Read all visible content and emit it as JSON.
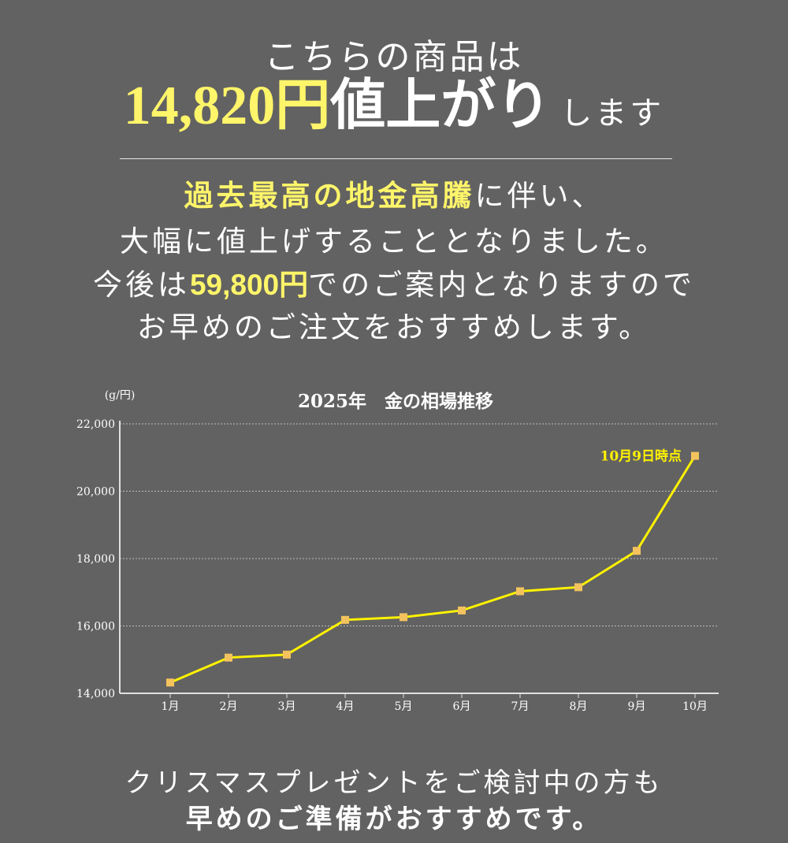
{
  "headline": {
    "line1": "こちらの商品は",
    "price_increase": "14,820円",
    "increase_word": "値上がり",
    "suffix": "します"
  },
  "body": {
    "line1_highlight": "過去最高の地金高騰",
    "line1_rest": "に伴い、",
    "line2": "大幅に値上げすることとなりました。",
    "line3_pre": "今後は",
    "line3_price": "59,800円",
    "line3_post": "でのご案内となりますので",
    "line4": "お早めのご注文をおすすめします。"
  },
  "chart_data": {
    "type": "line",
    "title": "2025年　金の相場推移",
    "ylabel": "(g/円)",
    "categories": [
      "1月",
      "2月",
      "3月",
      "4月",
      "5月",
      "6月",
      "7月",
      "8月",
      "9月",
      "10月"
    ],
    "values": [
      14320,
      15060,
      15150,
      16180,
      16260,
      16460,
      17030,
      17150,
      18230,
      21050
    ],
    "ylim": [
      14000,
      22000
    ],
    "yticks": [
      14000,
      16000,
      18000,
      20000,
      22000
    ],
    "ytick_labels": [
      "14,000",
      "16,000",
      "18,000",
      "20,000",
      "22,000"
    ],
    "annotation": "10月9日時点",
    "grid": true,
    "colors": {
      "line": "#fff200",
      "marker": "#f4c35e",
      "annotation": "#fff200"
    }
  },
  "footer": {
    "line1": "クリスマスプレゼントをご検討中の方も",
    "line2": "早めのご準備がおすすめです。"
  },
  "colors": {
    "background": "#626262",
    "highlight": "#fff56a",
    "text": "#ffffff"
  }
}
